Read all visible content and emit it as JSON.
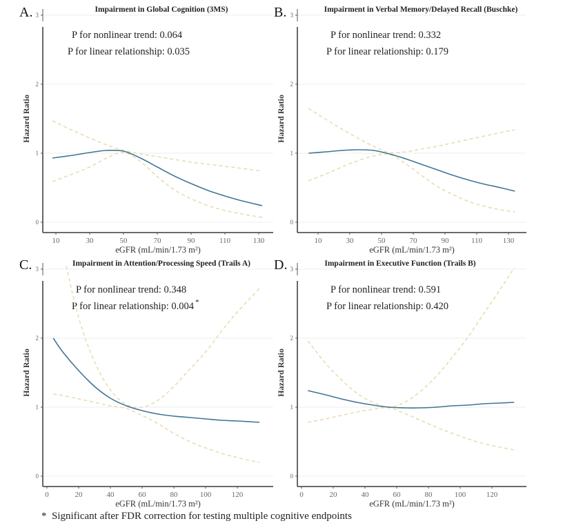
{
  "figure": {
    "footnote": "*  Significant after FDR correction for testing multiple cognitive endpoints",
    "colors": {
      "fit_line": "#3f7593",
      "ci_line": "#e9dcae",
      "grid": "#ececec",
      "axis": "#555555"
    }
  },
  "chart_data": [
    {
      "id": "A",
      "letter": "A.",
      "type": "line",
      "title": "Impairment in Global Cognition (3MS)",
      "xlabel": "eGFR (mL/min/1.73 m²)",
      "ylabel": "Hazard Ratio",
      "xticks": [
        10,
        30,
        50,
        70,
        90,
        110,
        130
      ],
      "yticks": [
        0,
        1,
        2,
        3
      ],
      "xlim": [
        2,
        142
      ],
      "ylim": [
        -0.15,
        3
      ],
      "grid": true,
      "annotations": [
        "P for nonlinear trend: 0.064",
        "P for linear relationship: 0.035"
      ],
      "significant": false,
      "x": [
        8,
        20,
        30,
        40,
        50,
        60,
        70,
        80,
        90,
        100,
        110,
        120,
        132
      ],
      "series": [
        {
          "name": "Hazard ratio",
          "values": [
            0.93,
            0.97,
            1.01,
            1.04,
            1.03,
            0.93,
            0.8,
            0.67,
            0.56,
            0.46,
            0.38,
            0.31,
            0.24
          ]
        },
        {
          "name": "Upper 95% CI",
          "values": [
            1.47,
            1.33,
            1.22,
            1.12,
            1.04,
            0.99,
            0.95,
            0.91,
            0.87,
            0.84,
            0.81,
            0.78,
            0.74
          ]
        },
        {
          "name": "Lower 95% CI",
          "values": [
            0.59,
            0.7,
            0.8,
            0.93,
            1.01,
            0.88,
            0.66,
            0.47,
            0.34,
            0.24,
            0.17,
            0.12,
            0.07
          ]
        }
      ]
    },
    {
      "id": "B",
      "letter": "B.",
      "type": "line",
      "title": "Impairment in Verbal Memory/Delayed Recall (Buschke)",
      "xlabel": "eGFR (mL/min/1.73 m²)",
      "ylabel": "Hazard Ratio",
      "xticks": [
        10,
        30,
        50,
        70,
        90,
        110,
        130
      ],
      "yticks": [
        0,
        1,
        2,
        3
      ],
      "xlim": [
        -2,
        141
      ],
      "ylim": [
        -0.15,
        3
      ],
      "grid": true,
      "annotations": [
        "P for nonlinear trend: 0.332",
        "P for linear relationship: 0.179"
      ],
      "significant": false,
      "x": [
        4,
        15,
        25,
        35,
        45,
        55,
        65,
        75,
        85,
        95,
        105,
        115,
        125,
        134
      ],
      "series": [
        {
          "name": "Hazard ratio",
          "values": [
            1.0,
            1.02,
            1.04,
            1.05,
            1.04,
            0.99,
            0.92,
            0.84,
            0.76,
            0.68,
            0.61,
            0.55,
            0.5,
            0.45
          ]
        },
        {
          "name": "Upper 95% CI",
          "values": [
            1.65,
            1.49,
            1.35,
            1.22,
            1.1,
            1.01,
            1.02,
            1.06,
            1.1,
            1.15,
            1.2,
            1.25,
            1.3,
            1.34
          ]
        },
        {
          "name": "Lower 95% CI",
          "values": [
            0.6,
            0.7,
            0.8,
            0.89,
            0.96,
            0.98,
            0.85,
            0.68,
            0.52,
            0.4,
            0.3,
            0.23,
            0.18,
            0.15
          ]
        }
      ]
    },
    {
      "id": "C",
      "letter": "C.",
      "type": "line",
      "title": "Impairment in Attention/Processing Speed (Trails A)",
      "xlabel": "eGFR (mL/min/1.73 m²)",
      "ylabel": "Hazard Ratio",
      "xticks": [
        0,
        20,
        40,
        60,
        80,
        100,
        120
      ],
      "yticks": [
        0,
        1,
        2,
        3
      ],
      "xlim": [
        -3,
        142
      ],
      "ylim": [
        -0.15,
        3
      ],
      "grid": true,
      "annotations": [
        "P for nonlinear trend: 0.348",
        "P for linear relationship: 0.004"
      ],
      "significant": true,
      "x": [
        4,
        10,
        20,
        30,
        40,
        50,
        60,
        70,
        80,
        90,
        100,
        110,
        120,
        134
      ],
      "series": [
        {
          "name": "Hazard ratio",
          "values": [
            2.0,
            1.8,
            1.53,
            1.3,
            1.13,
            1.02,
            0.95,
            0.9,
            0.87,
            0.85,
            0.83,
            0.81,
            0.8,
            0.78
          ]
        },
        {
          "name": "Upper 95% CI",
          "values": [
            4.2,
            3.3,
            2.3,
            1.66,
            1.25,
            1.04,
            1.0,
            1.1,
            1.3,
            1.55,
            1.8,
            2.1,
            2.38,
            2.72
          ]
        },
        {
          "name": "Lower 95% CI",
          "values": [
            1.19,
            1.17,
            1.12,
            1.07,
            1.02,
            0.98,
            0.88,
            0.76,
            0.62,
            0.5,
            0.41,
            0.33,
            0.27,
            0.2
          ]
        }
      ]
    },
    {
      "id": "D",
      "letter": "D.",
      "type": "line",
      "title": "Impairment in Executive Function (Trails B)",
      "xlabel": "eGFR (mL/min/1.73 m²)",
      "ylabel": "Hazard Ratio",
      "xticks": [
        0,
        20,
        40,
        60,
        80,
        100,
        120
      ],
      "yticks": [
        0,
        1,
        2,
        3
      ],
      "xlim": [
        -3,
        142
      ],
      "ylim": [
        -0.15,
        3
      ],
      "grid": true,
      "annotations": [
        "P for nonlinear trend: 0.591",
        "P for linear relationship: 0.420"
      ],
      "significant": false,
      "x": [
        4,
        15,
        25,
        35,
        45,
        55,
        65,
        75,
        85,
        95,
        105,
        115,
        125,
        134
      ],
      "series": [
        {
          "name": "Hazard ratio",
          "values": [
            1.24,
            1.18,
            1.12,
            1.07,
            1.03,
            1.0,
            0.99,
            0.99,
            1.0,
            1.02,
            1.03,
            1.05,
            1.06,
            1.07
          ]
        },
        {
          "name": "Upper 95% CI",
          "values": [
            1.96,
            1.64,
            1.4,
            1.2,
            1.07,
            1.0,
            1.07,
            1.23,
            1.45,
            1.72,
            2.02,
            2.36,
            2.7,
            3.02
          ]
        },
        {
          "name": "Lower 95% CI",
          "values": [
            0.78,
            0.83,
            0.88,
            0.93,
            0.97,
            0.99,
            0.91,
            0.81,
            0.71,
            0.62,
            0.54,
            0.47,
            0.42,
            0.38
          ]
        }
      ]
    }
  ]
}
